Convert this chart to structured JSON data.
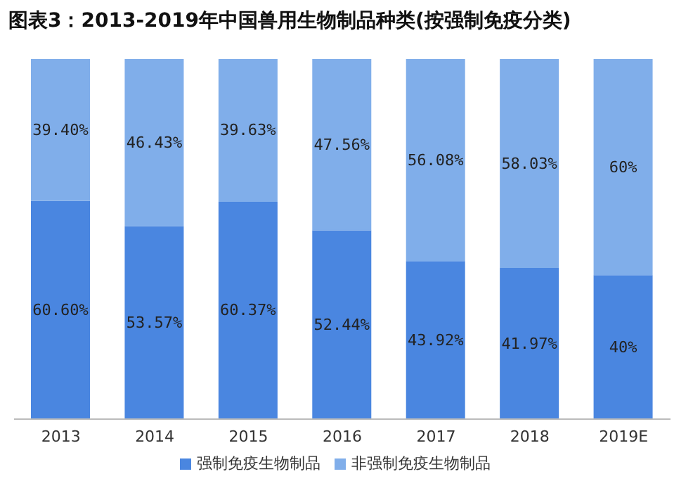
{
  "chart_data": {
    "type": "bar",
    "title": "图表3：2013-2019年中国兽用生物制品种类(按强制免疫分类)",
    "categories": [
      "2013",
      "2014",
      "2015",
      "2016",
      "2017",
      "2018",
      "2019E"
    ],
    "stacked": true,
    "legend": "bottom",
    "tick_labels": "x",
    "series": [
      {
        "name": "强制免疫生物制品",
        "color": "#4a86e0",
        "values": [
          60.6,
          53.57,
          60.37,
          52.44,
          43.92,
          41.97,
          40
        ],
        "value_labels": [
          "60.60%",
          "53.57%",
          "60.37%",
          "52.44%",
          "43.92%",
          "41.97%",
          "40%"
        ]
      },
      {
        "name": "非强制免疫生物制品",
        "color": "#80aeea",
        "values": [
          39.4,
          46.43,
          39.63,
          47.56,
          56.08,
          58.03,
          60
        ],
        "value_labels": [
          "39.40%",
          "46.43%",
          "39.63%",
          "47.56%",
          "56.08%",
          "58.03%",
          "60%"
        ]
      }
    ]
  }
}
